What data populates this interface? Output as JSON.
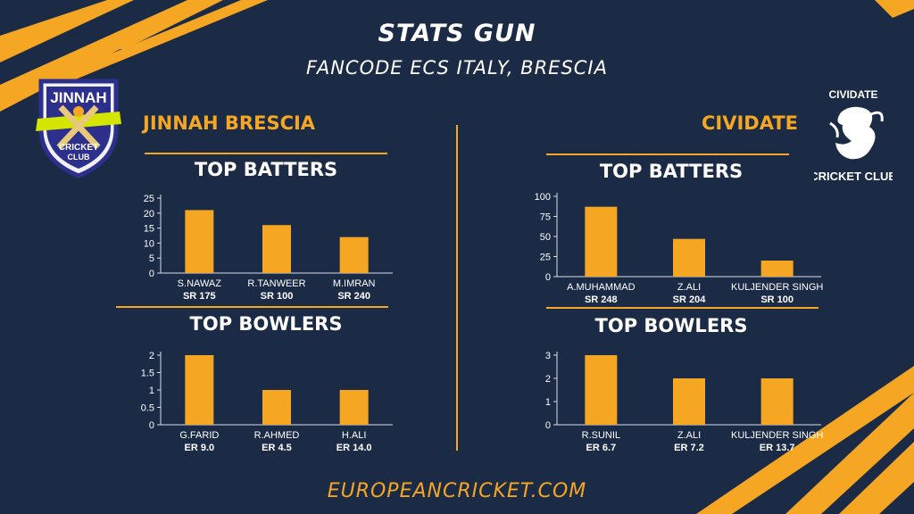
{
  "header": {
    "title": "STATS GUN",
    "subtitle": "FANCODE ECS ITALY, BRESCIA"
  },
  "footer": "EUROPEANCRICKET.COM",
  "colors": {
    "background": "#1c2b45",
    "accent": "#f5a623",
    "text": "#ffffff",
    "axis": "#d8dde6"
  },
  "logos": {
    "left": {
      "top": "JINNAH",
      "bottom": "CRICKET",
      "club": "CLUB"
    },
    "right": {
      "top": "CIVIDATE",
      "bottom": "CRICKET CLUB"
    }
  },
  "teams": [
    {
      "name": "JINNAH BRESCIA"
    },
    {
      "name": "CIVIDATE"
    }
  ],
  "sections": {
    "batters": "TOP BATTERS",
    "bowlers": "TOP BOWLERS"
  },
  "chart_data": [
    {
      "id": "jinnah-batters",
      "type": "bar",
      "categories": [
        "S.NAWAZ",
        "R.TANWEER",
        "M.IMRAN"
      ],
      "sublabels": [
        "SR 175",
        "SR 100",
        "SR 240"
      ],
      "values": [
        21,
        16,
        12
      ],
      "yticks": [
        0,
        5,
        10,
        15,
        20,
        25
      ],
      "ylim": [
        0,
        25
      ]
    },
    {
      "id": "jinnah-bowlers",
      "type": "bar",
      "categories": [
        "G.FARID",
        "R.AHMED",
        "H.ALI"
      ],
      "sublabels": [
        "ER 9.0",
        "ER 4.5",
        "ER 14.0"
      ],
      "values": [
        2,
        1,
        1
      ],
      "yticks": [
        0,
        0.5,
        1,
        1.5,
        2
      ],
      "ylim": [
        0,
        2
      ]
    },
    {
      "id": "cividate-batters",
      "type": "bar",
      "categories": [
        "A.MUHAMMAD",
        "Z.ALI",
        "KULJENDER SINGH"
      ],
      "sublabels": [
        "SR 248",
        "SR 204",
        "SR 100"
      ],
      "values": [
        87,
        47,
        20
      ],
      "yticks": [
        0,
        25,
        50,
        75,
        100
      ],
      "ylim": [
        0,
        100
      ]
    },
    {
      "id": "cividate-bowlers",
      "type": "bar",
      "categories": [
        "R.SUNIL",
        "Z.ALI",
        "KULJENDER  SINGH"
      ],
      "sublabels": [
        "ER 6.7",
        "ER 7.2",
        "ER 13.7"
      ],
      "values": [
        3,
        2,
        2
      ],
      "yticks": [
        0,
        1,
        2,
        3
      ],
      "ylim": [
        0,
        3
      ]
    }
  ]
}
